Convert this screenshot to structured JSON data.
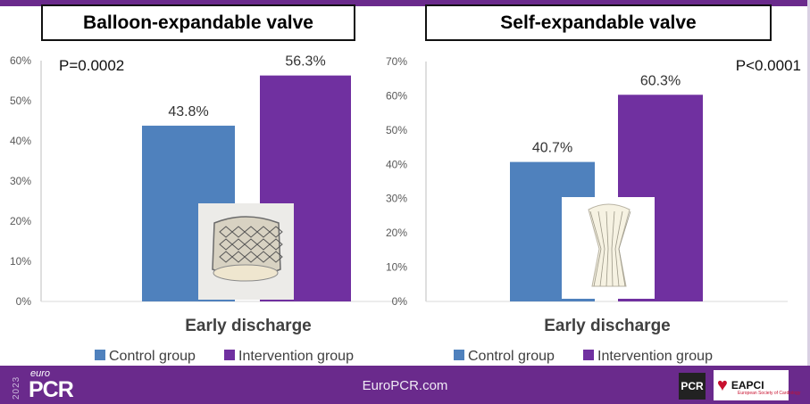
{
  "footer": {
    "url": "EuroPCR.com",
    "logo_euro": "euro",
    "logo_pcr": "PCR",
    "logo_year": "2023",
    "badge_pcr": "PCR",
    "badge_eapci": "EAPCI",
    "badge_eapci_sub": "European Society of Cardiology"
  },
  "colors": {
    "control": "#4f81bd",
    "intervention": "#7030a0",
    "footer": "#6a2a8c"
  },
  "chart_data": [
    {
      "type": "bar",
      "title": "Balloon-expandable valve",
      "categories": [
        "Early discharge"
      ],
      "series": [
        {
          "name": "Control group",
          "values": [
            43.8
          ]
        },
        {
          "name": "Intervention group",
          "values": [
            56.3
          ]
        }
      ],
      "data_labels": [
        "43.8%",
        "56.3%"
      ],
      "ylim": [
        0,
        60
      ],
      "yticks": [
        "0%",
        "10%",
        "20%",
        "30%",
        "40%",
        "50%",
        "60%"
      ],
      "annotation": "P=0.0002",
      "xlabel": "Early discharge",
      "legend": [
        "Control group",
        "Intervention group"
      ],
      "image": "balloon-expandable valve photo"
    },
    {
      "type": "bar",
      "title": "Self-expandable valve",
      "categories": [
        "Early discharge"
      ],
      "series": [
        {
          "name": "Control group",
          "values": [
            40.7
          ]
        },
        {
          "name": "Intervention group",
          "values": [
            60.3
          ]
        }
      ],
      "data_labels": [
        "40.7%",
        "60.3%"
      ],
      "ylim": [
        0,
        70
      ],
      "yticks": [
        "0%",
        "10%",
        "20%",
        "30%",
        "40%",
        "50%",
        "60%",
        "70%"
      ],
      "annotation": "P<0.0001",
      "xlabel": "Early discharge",
      "legend": [
        "Control group",
        "Intervention group"
      ],
      "image": "self-expandable valve photo"
    }
  ]
}
